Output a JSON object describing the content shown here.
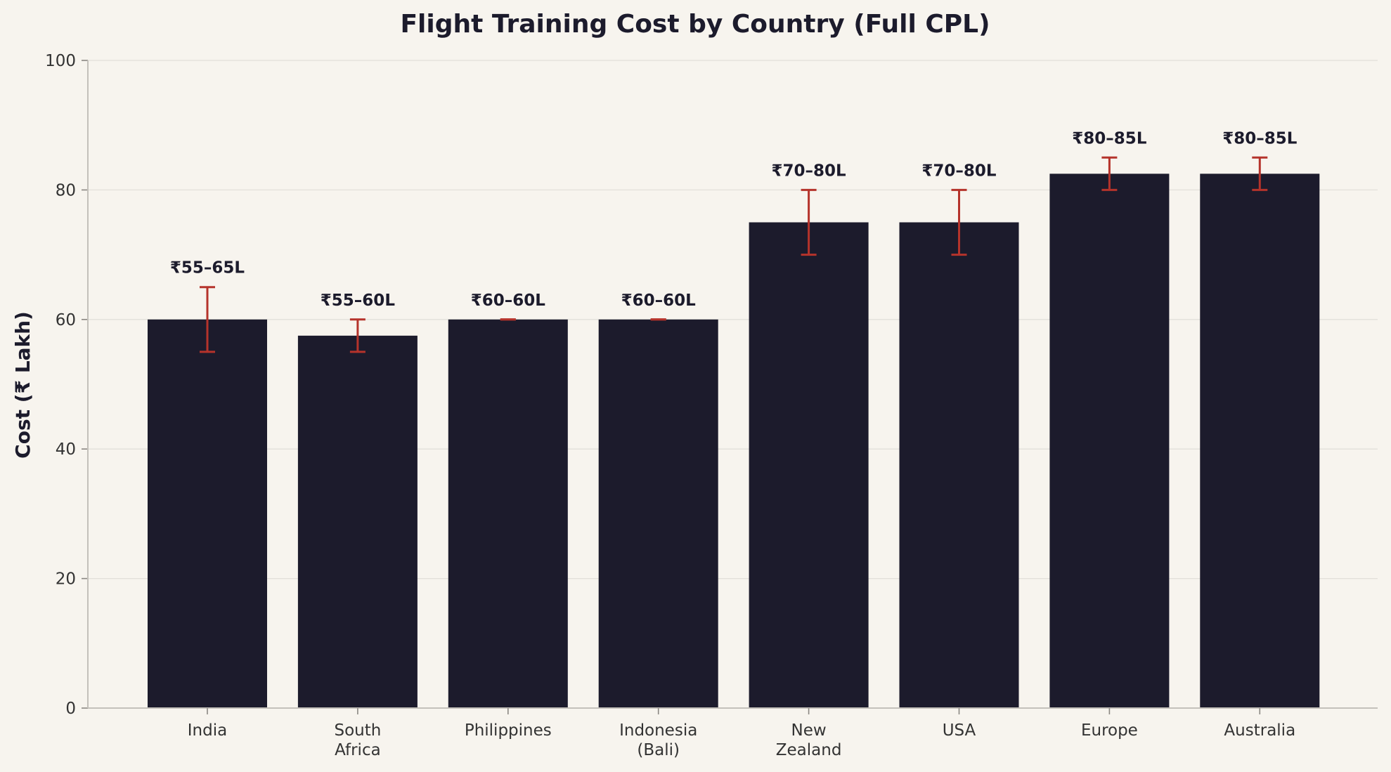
{
  "chart_data": {
    "type": "bar",
    "title": "Flight Training Cost by Country (Full CPL)",
    "xlabel": "",
    "ylabel": "Cost (₹ Lakh)",
    "ylim": [
      0,
      100
    ],
    "yticks": [
      0,
      20,
      40,
      60,
      80,
      100
    ],
    "grid": "horizontal",
    "categories": [
      "India",
      "South Africa",
      "Philippines",
      "Indonesia (Bali)",
      "New Zealand",
      "USA",
      "Europe",
      "Australia"
    ],
    "category_lines": [
      [
        "India"
      ],
      [
        "South",
        "Africa"
      ],
      [
        "Philippines"
      ],
      [
        "Indonesia",
        "(Bali)"
      ],
      [
        "New",
        "Zealand"
      ],
      [
        "USA"
      ],
      [
        "Europe"
      ],
      [
        "Australia"
      ]
    ],
    "values": [
      60,
      57.5,
      60,
      60,
      75,
      75,
      82.5,
      82.5
    ],
    "range_low": [
      55,
      55,
      60,
      60,
      70,
      70,
      80,
      80
    ],
    "range_high": [
      65,
      60,
      60,
      60,
      80,
      80,
      85,
      85
    ],
    "data_labels": [
      "₹55–65L",
      "₹55–60L",
      "₹60–60L",
      "₹60–60L",
      "₹70–80L",
      "₹70–80L",
      "₹80–85L",
      "₹80–85L"
    ],
    "colors": {
      "bar": "#1c1b2c",
      "error_bar": "#b5332b",
      "background": "#f7f4ee"
    }
  }
}
